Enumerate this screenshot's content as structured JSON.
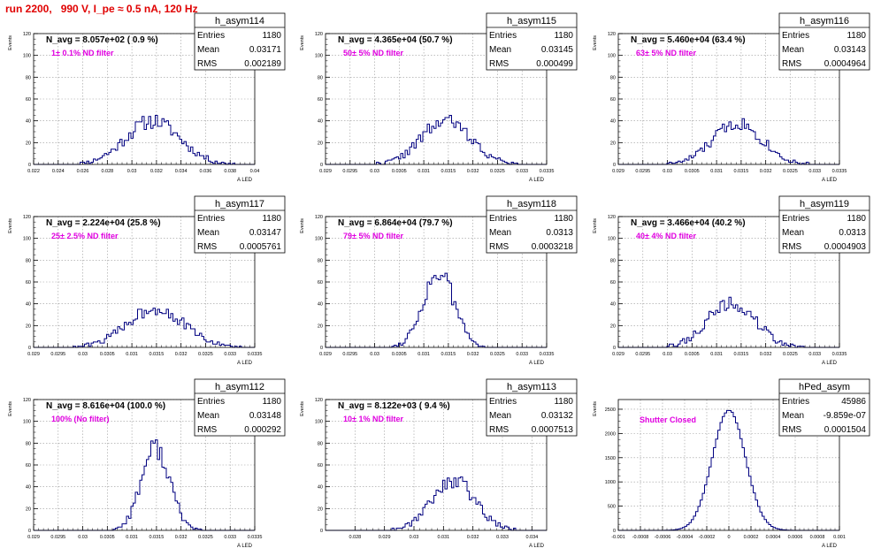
{
  "title": "run 2200,   990 V, I_pe ≈ 0.5 nA, 120 Hz",
  "chart_data": [
    {
      "type": "histogram",
      "name": "h_asym114",
      "nlabel": "N_avg = 8.057e+02 ( 0.9 %)",
      "filter": "1± 0.1% ND filter",
      "stats": [
        [
          "Entries",
          "1180"
        ],
        [
          "Mean",
          "0.03171"
        ],
        [
          "RMS",
          "0.002189"
        ]
      ],
      "xlim": [
        0.022,
        0.04
      ],
      "ylim": [
        0,
        120
      ],
      "mean": 0.0317,
      "sigma": 0.0022,
      "peak": 40,
      "seed": 11,
      "xticks": [
        "0.022",
        "0.024",
        "0.026",
        "0.028",
        "0.03",
        "0.032",
        "0.034",
        "0.036",
        "0.038",
        "0.04"
      ],
      "yticks": [
        "0",
        "20",
        "40",
        "60",
        "80",
        "100",
        "120"
      ],
      "ylabel": "Events",
      "xlabel": "A_LED"
    },
    {
      "type": "histogram",
      "name": "h_asym115",
      "nlabel": "N_avg = 4.365e+04 (50.7 %)",
      "filter": "50± 5% ND filter",
      "stats": [
        [
          "Entries",
          "1180"
        ],
        [
          "Mean",
          "0.03145"
        ],
        [
          "RMS",
          "0.000499"
        ]
      ],
      "xlim": [
        0.029,
        0.0335
      ],
      "ylim": [
        0,
        120
      ],
      "mean": 0.03145,
      "sigma": 0.0005,
      "peak": 40,
      "seed": 22,
      "xticks": [
        "0.029",
        "0.0295",
        "0.03",
        "0.0305",
        "0.031",
        "0.0315",
        "0.032",
        "0.0325",
        "0.033",
        "0.0335"
      ],
      "yticks": [
        "0",
        "20",
        "40",
        "60",
        "80",
        "100",
        "120"
      ],
      "ylabel": "Events",
      "xlabel": "A_LED"
    },
    {
      "type": "histogram",
      "name": "h_asym116",
      "nlabel": "N_avg = 5.460e+04 (63.4 %)",
      "filter": "63± 5% ND filter",
      "stats": [
        [
          "Entries",
          "1180"
        ],
        [
          "Mean",
          "0.03143"
        ],
        [
          "RMS",
          "0.0004964"
        ]
      ],
      "xlim": [
        0.029,
        0.0335
      ],
      "ylim": [
        0,
        120
      ],
      "mean": 0.03143,
      "sigma": 0.0005,
      "peak": 38,
      "seed": 33,
      "xticks": [
        "0.029",
        "0.0295",
        "0.03",
        "0.0305",
        "0.031",
        "0.0315",
        "0.032",
        "0.0325",
        "0.033",
        "0.0335"
      ],
      "yticks": [
        "0",
        "20",
        "40",
        "60",
        "80",
        "100",
        "120"
      ],
      "ylabel": "Events",
      "xlabel": "A_LED"
    },
    {
      "type": "histogram",
      "name": "h_asym117",
      "nlabel": "N_avg = 2.224e+04 (25.8 %)",
      "filter": "25± 2.5% ND filter",
      "stats": [
        [
          "Entries",
          "1180"
        ],
        [
          "Mean",
          "0.03147"
        ],
        [
          "RMS",
          "0.0005761"
        ]
      ],
      "xlim": [
        0.029,
        0.0335
      ],
      "ylim": [
        0,
        120
      ],
      "mean": 0.03147,
      "sigma": 0.00058,
      "peak": 36,
      "seed": 44,
      "xticks": [
        "0.029",
        "0.0295",
        "0.03",
        "0.0305",
        "0.031",
        "0.0315",
        "0.032",
        "0.0325",
        "0.033",
        "0.0335"
      ],
      "yticks": [
        "0",
        "20",
        "40",
        "60",
        "80",
        "100",
        "120"
      ],
      "ylabel": "Events",
      "xlabel": "A_LED"
    },
    {
      "type": "histogram",
      "name": "h_asym118",
      "nlabel": "N_avg = 6.864e+04 (79.7 %)",
      "filter": "79± 5% ND filter",
      "stats": [
        [
          "Entries",
          "1180"
        ],
        [
          "Mean",
          "0.0313"
        ],
        [
          "RMS",
          "0.0003218"
        ]
      ],
      "xlim": [
        0.029,
        0.0335
      ],
      "ylim": [
        0,
        120
      ],
      "mean": 0.0313,
      "sigma": 0.00032,
      "peak": 68,
      "seed": 55,
      "xticks": [
        "0.029",
        "0.0295",
        "0.03",
        "0.0305",
        "0.031",
        "0.0315",
        "0.032",
        "0.0325",
        "0.033",
        "0.0335"
      ],
      "yticks": [
        "0",
        "20",
        "40",
        "60",
        "80",
        "100",
        "120"
      ],
      "ylabel": "Events",
      "xlabel": "A_LED"
    },
    {
      "type": "histogram",
      "name": "h_asym119",
      "nlabel": "N_avg = 3.466e+04 (40.2 %)",
      "filter": "40± 4% ND filter",
      "stats": [
        [
          "Entries",
          "1180"
        ],
        [
          "Mean",
          "0.0313"
        ],
        [
          "RMS",
          "0.0004903"
        ]
      ],
      "xlim": [
        0.029,
        0.0335
      ],
      "ylim": [
        0,
        120
      ],
      "mean": 0.0313,
      "sigma": 0.00049,
      "peak": 40,
      "seed": 66,
      "xticks": [
        "0.029",
        "0.0295",
        "0.03",
        "0.0305",
        "0.031",
        "0.0315",
        "0.032",
        "0.0325",
        "0.033",
        "0.0335"
      ],
      "yticks": [
        "0",
        "20",
        "40",
        "60",
        "80",
        "100",
        "120"
      ],
      "ylabel": "Events",
      "xlabel": "A_LED"
    },
    {
      "type": "histogram",
      "name": "h_asym112",
      "nlabel": "N_avg = 8.616e+04 (100.0 %)",
      "filter": "100% (No filter)",
      "stats": [
        [
          "Entries",
          "1180"
        ],
        [
          "Mean",
          "0.03148"
        ],
        [
          "RMS",
          "0.000292"
        ]
      ],
      "xlim": [
        0.029,
        0.0335
      ],
      "ylim": [
        0,
        120
      ],
      "mean": 0.03148,
      "sigma": 0.00029,
      "peak": 76,
      "seed": 77,
      "xticks": [
        "0.029",
        "0.0295",
        "0.03",
        "0.0305",
        "0.031",
        "0.0315",
        "0.032",
        "0.0325",
        "0.033",
        "0.0335"
      ],
      "yticks": [
        "0",
        "20",
        "40",
        "60",
        "80",
        "100",
        "120"
      ],
      "ylabel": "Events",
      "xlabel": "A_LED"
    },
    {
      "type": "histogram",
      "name": "h_asym113",
      "nlabel": "N_avg = 8.122e+03 ( 9.4 %)",
      "filter": "10± 1% ND filter",
      "stats": [
        [
          "Entries",
          "1180"
        ],
        [
          "Mean",
          "0.03132"
        ],
        [
          "RMS",
          "0.0007513"
        ]
      ],
      "xlim": [
        0.027,
        0.0345
      ],
      "ylim": [
        0,
        120
      ],
      "mean": 0.03132,
      "sigma": 0.00075,
      "peak": 46,
      "seed": 88,
      "xticks": [
        "0.028",
        "0.029",
        "0.03",
        "0.031",
        "0.032",
        "0.033",
        "0.034"
      ],
      "xtickvals": [
        0.028,
        0.029,
        0.03,
        0.031,
        0.032,
        0.033,
        0.034
      ],
      "yticks": [
        "0",
        "20",
        "40",
        "60",
        "80",
        "100",
        "120"
      ],
      "ylabel": "Events",
      "xlabel": "A_LED"
    },
    {
      "type": "histogram",
      "name": "hPed_asym",
      "nlabel": "",
      "filter": "Shutter Closed",
      "stats": [
        [
          "Entries",
          "45986"
        ],
        [
          "Mean",
          "-9.859e-07"
        ],
        [
          "RMS",
          "0.0001504"
        ]
      ],
      "xlim": [
        -0.001,
        0.001
      ],
      "ylim": [
        0,
        2700
      ],
      "mean": 0,
      "sigma": 0.00015,
      "peak": 2480,
      "seed": 99,
      "xticks": [
        "-0.001",
        "-0.0008",
        "-0.0006",
        "-0.0004",
        "-0.0002",
        "0",
        "0.0002",
        "0.0004",
        "0.0006",
        "0.0008",
        "0.001"
      ],
      "yticks": [
        "0",
        "500",
        "1000",
        "1500",
        "2000",
        "2500"
      ],
      "ytickvals": [
        0,
        500,
        1000,
        1500,
        2000,
        2500
      ],
      "ylabel": "Events",
      "xlabel": "A_LED"
    }
  ],
  "colors": {
    "line": "#000080",
    "filter_text": "#e000e0",
    "title": "#e00000",
    "grid": "#999999"
  }
}
